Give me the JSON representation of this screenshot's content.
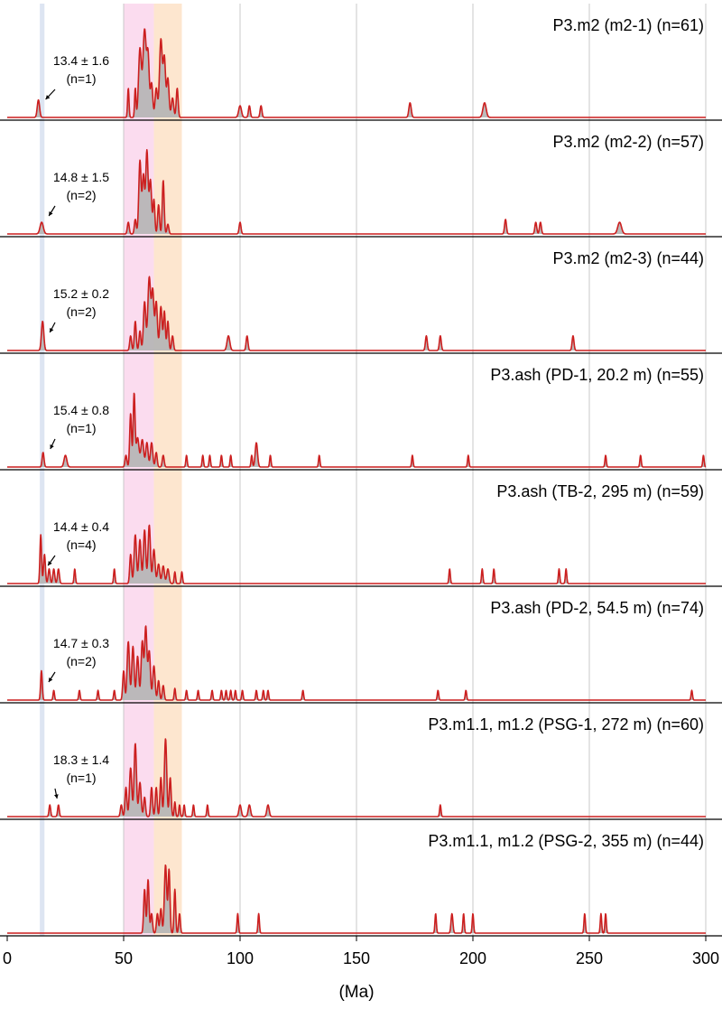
{
  "chart_data": {
    "type": "area",
    "xlabel": "(Ma)",
    "xlim": [
      0,
      300
    ],
    "xticks": [
      0,
      50,
      100,
      150,
      200,
      250,
      300
    ],
    "grid": true,
    "colors": {
      "line": "#cc1f1f",
      "fill": "#b4b4b4",
      "band_blue": "#dde5f2",
      "band_pink": "#fbdcef",
      "band_orange": "#fde6cf",
      "grid": "#c8c8c8",
      "separator": "#000000"
    },
    "bands": [
      {
        "color": "blue",
        "x": [
          14,
          16
        ]
      },
      {
        "color": "pink",
        "x": [
          50,
          63
        ]
      },
      {
        "color": "orange",
        "x": [
          63,
          75
        ]
      }
    ],
    "panels": [
      {
        "title": "P3.m2 (m2-1) (n=61)",
        "annotation": {
          "value": "13.4 ± 1.6",
          "n": "(n=1)"
        },
        "peaks": [
          [
            13.4,
            0.18,
            0.5
          ],
          [
            52,
            0.3,
            0.3
          ],
          [
            55,
            0.3,
            0.3
          ],
          [
            57,
            0.7,
            0.6
          ],
          [
            59,
            0.9,
            0.7
          ],
          [
            60.5,
            0.6,
            0.5
          ],
          [
            62,
            0.35,
            0.5
          ],
          [
            64,
            0.3,
            0.5
          ],
          [
            66,
            0.8,
            0.6
          ],
          [
            67.5,
            0.6,
            0.5
          ],
          [
            69,
            0.4,
            0.5
          ],
          [
            71,
            0.2,
            0.5
          ],
          [
            73,
            0.3,
            0.4
          ],
          [
            100,
            0.12,
            0.6
          ],
          [
            104,
            0.12,
            0.4
          ],
          [
            109,
            0.12,
            0.4
          ],
          [
            173,
            0.15,
            0.5
          ],
          [
            205,
            0.15,
            0.7
          ]
        ]
      },
      {
        "title": "P3.m2 (m2-2) (n=57)",
        "annotation": {
          "value": "14.8 ± 1.5",
          "n": "(n=2)"
        },
        "peaks": [
          [
            14.8,
            0.12,
            0.7
          ],
          [
            52,
            0.12,
            0.4
          ],
          [
            55,
            0.15,
            0.4
          ],
          [
            57,
            0.75,
            0.5
          ],
          [
            58.5,
            0.6,
            0.5
          ],
          [
            60,
            0.85,
            0.5
          ],
          [
            61.5,
            0.55,
            0.5
          ],
          [
            63,
            0.35,
            0.4
          ],
          [
            65,
            0.3,
            0.4
          ],
          [
            67,
            0.55,
            0.4
          ],
          [
            69,
            0.1,
            0.4
          ],
          [
            100,
            0.12,
            0.4
          ],
          [
            214,
            0.15,
            0.4
          ],
          [
            227,
            0.12,
            0.4
          ],
          [
            229,
            0.12,
            0.4
          ],
          [
            263,
            0.12,
            0.8
          ]
        ]
      },
      {
        "title": "P3.m2 (m2-3) (n=44)",
        "annotation": {
          "value": "15.2 ± 0.2",
          "n": "(n=2)"
        },
        "peaks": [
          [
            15.2,
            0.3,
            0.5
          ],
          [
            53,
            0.15,
            0.4
          ],
          [
            55,
            0.3,
            0.4
          ],
          [
            57,
            0.2,
            0.4
          ],
          [
            59,
            0.5,
            0.5
          ],
          [
            61,
            0.75,
            0.6
          ],
          [
            62.5,
            0.6,
            0.5
          ],
          [
            64,
            0.5,
            0.5
          ],
          [
            66,
            0.45,
            0.5
          ],
          [
            67.5,
            0.4,
            0.4
          ],
          [
            69,
            0.3,
            0.4
          ],
          [
            71,
            0.15,
            0.4
          ],
          [
            95,
            0.15,
            0.6
          ],
          [
            103,
            0.15,
            0.4
          ],
          [
            180,
            0.15,
            0.4
          ],
          [
            186,
            0.15,
            0.4
          ],
          [
            243,
            0.15,
            0.4
          ]
        ]
      },
      {
        "title": "P3.ash (PD-1, 20.2 m) (n=55)",
        "annotation": {
          "value": "15.4 ± 0.8",
          "n": "(n=1)"
        },
        "peaks": [
          [
            15.4,
            0.15,
            0.4
          ],
          [
            25,
            0.12,
            0.6
          ],
          [
            51,
            0.12,
            0.4
          ],
          [
            53,
            0.55,
            0.4
          ],
          [
            54.5,
            0.75,
            0.4
          ],
          [
            56,
            0.3,
            0.6
          ],
          [
            58,
            0.28,
            0.6
          ],
          [
            60,
            0.25,
            0.5
          ],
          [
            62,
            0.25,
            0.5
          ],
          [
            64,
            0.15,
            0.4
          ],
          [
            67,
            0.12,
            0.4
          ],
          [
            77,
            0.12,
            0.3
          ],
          [
            84,
            0.12,
            0.3
          ],
          [
            87,
            0.12,
            0.3
          ],
          [
            92,
            0.12,
            0.3
          ],
          [
            96,
            0.12,
            0.3
          ],
          [
            105,
            0.12,
            0.3
          ],
          [
            107,
            0.25,
            0.5
          ],
          [
            113,
            0.12,
            0.3
          ],
          [
            134,
            0.12,
            0.3
          ],
          [
            174,
            0.12,
            0.3
          ],
          [
            198,
            0.12,
            0.3
          ],
          [
            257,
            0.12,
            0.3
          ],
          [
            272,
            0.12,
            0.3
          ],
          [
            299,
            0.12,
            0.3
          ]
        ]
      },
      {
        "title": "P3.ash (TB-2, 295 m) (n=59)",
        "annotation": {
          "value": "14.4 ± 0.4",
          "n": "(n=4)"
        },
        "peaks": [
          [
            14.4,
            0.5,
            0.35
          ],
          [
            16,
            0.3,
            0.4
          ],
          [
            18,
            0.15,
            0.4
          ],
          [
            20,
            0.15,
            0.4
          ],
          [
            22,
            0.15,
            0.4
          ],
          [
            29,
            0.15,
            0.3
          ],
          [
            46,
            0.15,
            0.3
          ],
          [
            53,
            0.3,
            0.4
          ],
          [
            55,
            0.5,
            0.5
          ],
          [
            57,
            0.45,
            0.5
          ],
          [
            59,
            0.55,
            0.5
          ],
          [
            61,
            0.6,
            0.5
          ],
          [
            63,
            0.35,
            0.5
          ],
          [
            65,
            0.2,
            0.5
          ],
          [
            67,
            0.18,
            0.5
          ],
          [
            69,
            0.15,
            0.5
          ],
          [
            72,
            0.12,
            0.3
          ],
          [
            75,
            0.12,
            0.3
          ],
          [
            190,
            0.15,
            0.3
          ],
          [
            204,
            0.15,
            0.3
          ],
          [
            209,
            0.15,
            0.3
          ],
          [
            237,
            0.15,
            0.3
          ],
          [
            240,
            0.15,
            0.3
          ]
        ]
      },
      {
        "title": "P3.ash (PD-2, 54.5 m) (n=74)",
        "annotation": {
          "value": "14.7 ± 0.3",
          "n": "(n=2)"
        },
        "peaks": [
          [
            14.7,
            0.3,
            0.35
          ],
          [
            20,
            0.1,
            0.3
          ],
          [
            31,
            0.1,
            0.3
          ],
          [
            39,
            0.1,
            0.3
          ],
          [
            46,
            0.1,
            0.3
          ],
          [
            50,
            0.3,
            0.4
          ],
          [
            52,
            0.6,
            0.5
          ],
          [
            54,
            0.55,
            0.5
          ],
          [
            56,
            0.45,
            0.5
          ],
          [
            58,
            0.6,
            0.5
          ],
          [
            59.5,
            0.75,
            0.5
          ],
          [
            61,
            0.5,
            0.5
          ],
          [
            63,
            0.35,
            0.5
          ],
          [
            65,
            0.2,
            0.4
          ],
          [
            67,
            0.15,
            0.4
          ],
          [
            72,
            0.12,
            0.3
          ],
          [
            77,
            0.1,
            0.3
          ],
          [
            82,
            0.1,
            0.3
          ],
          [
            88,
            0.1,
            0.3
          ],
          [
            92,
            0.1,
            0.3
          ],
          [
            94,
            0.1,
            0.3
          ],
          [
            96,
            0.1,
            0.3
          ],
          [
            98,
            0.1,
            0.3
          ],
          [
            101,
            0.1,
            0.3
          ],
          [
            107,
            0.1,
            0.3
          ],
          [
            110,
            0.1,
            0.3
          ],
          [
            112,
            0.1,
            0.3
          ],
          [
            127,
            0.1,
            0.3
          ],
          [
            185,
            0.1,
            0.3
          ],
          [
            197,
            0.1,
            0.3
          ],
          [
            294,
            0.1,
            0.3
          ]
        ]
      },
      {
        "title": "P3.m1.1, m1.2 (PSG-1, 272 m) (n=60)",
        "annotation": {
          "value": "18.3 ± 1.4",
          "n": "(n=1)"
        },
        "peaks": [
          [
            18.3,
            0.12,
            0.35
          ],
          [
            22,
            0.12,
            0.35
          ],
          [
            49,
            0.12,
            0.4
          ],
          [
            51,
            0.3,
            0.4
          ],
          [
            53,
            0.5,
            0.5
          ],
          [
            55,
            0.75,
            0.5
          ],
          [
            57,
            0.35,
            0.5
          ],
          [
            59,
            0.2,
            0.4
          ],
          [
            62,
            0.3,
            0.4
          ],
          [
            64,
            0.3,
            0.4
          ],
          [
            66,
            0.4,
            0.4
          ],
          [
            68,
            0.8,
            0.5
          ],
          [
            70,
            0.4,
            0.4
          ],
          [
            72,
            0.15,
            0.3
          ],
          [
            74,
            0.12,
            0.3
          ],
          [
            76,
            0.12,
            0.3
          ],
          [
            80,
            0.12,
            0.3
          ],
          [
            86,
            0.12,
            0.3
          ],
          [
            100,
            0.12,
            0.5
          ],
          [
            104,
            0.12,
            0.5
          ],
          [
            112,
            0.12,
            0.5
          ],
          [
            186,
            0.12,
            0.3
          ]
        ]
      },
      {
        "title": "P3.m1.1, m1.2 (PSG-2, 355 m) (n=44)",
        "annotation": null,
        "peaks": [
          [
            59,
            0.45,
            0.4
          ],
          [
            60.5,
            0.55,
            0.4
          ],
          [
            62,
            0.2,
            0.4
          ],
          [
            64.5,
            0.2,
            0.4
          ],
          [
            66,
            0.25,
            0.4
          ],
          [
            68,
            0.7,
            0.5
          ],
          [
            69.5,
            0.65,
            0.4
          ],
          [
            72,
            0.45,
            0.35
          ],
          [
            74,
            0.2,
            0.35
          ],
          [
            99,
            0.2,
            0.3
          ],
          [
            108,
            0.2,
            0.3
          ],
          [
            184,
            0.2,
            0.3
          ],
          [
            191,
            0.2,
            0.4
          ],
          [
            196,
            0.2,
            0.3
          ],
          [
            200,
            0.2,
            0.3
          ],
          [
            248,
            0.2,
            0.3
          ],
          [
            255,
            0.2,
            0.3
          ],
          [
            257,
            0.2,
            0.3
          ]
        ]
      }
    ]
  }
}
